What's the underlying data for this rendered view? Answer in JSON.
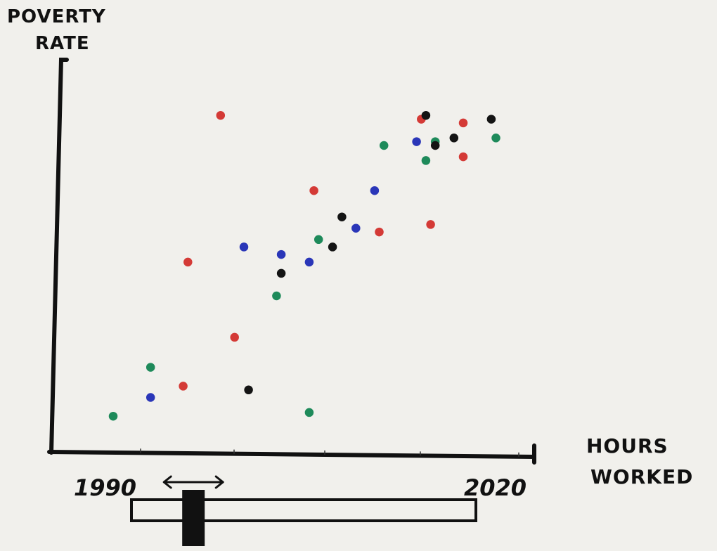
{
  "chart_data": {
    "type": "scatter",
    "ylabel_lines": [
      "POVERTY",
      "RATE"
    ],
    "xlabel_lines": [
      "HOURS",
      "WORKED"
    ],
    "xlim": [
      0,
      100
    ],
    "ylim": [
      0,
      100
    ],
    "grid": false,
    "legend": "none",
    "series": [
      {
        "color": "#1e8a5a",
        "points": [
          [
            11,
            8
          ],
          [
            19,
            21
          ],
          [
            53,
            9
          ],
          [
            46,
            40
          ],
          [
            55,
            55
          ],
          [
            69,
            80
          ],
          [
            78,
            76
          ],
          [
            80,
            81
          ],
          [
            93,
            82
          ]
        ]
      },
      {
        "color": "#d43a36",
        "points": [
          [
            34,
            88
          ],
          [
            27,
            49
          ],
          [
            37,
            29
          ],
          [
            26,
            16
          ],
          [
            54,
            68
          ],
          [
            68,
            57
          ],
          [
            79,
            59
          ],
          [
            77,
            87
          ],
          [
            86,
            86
          ],
          [
            86,
            77
          ]
        ]
      },
      {
        "color": "#2a36b8",
        "points": [
          [
            19,
            13
          ],
          [
            39,
            53
          ],
          [
            47,
            51
          ],
          [
            53,
            49
          ],
          [
            63,
            58
          ],
          [
            67,
            68
          ],
          [
            76,
            81
          ]
        ]
      },
      {
        "color": "#141414",
        "points": [
          [
            40,
            15
          ],
          [
            47,
            46
          ],
          [
            58,
            53
          ],
          [
            60,
            61
          ],
          [
            80,
            80
          ],
          [
            84,
            82
          ],
          [
            78,
            88
          ],
          [
            92,
            87
          ]
        ]
      }
    ]
  },
  "slider": {
    "min_label": "1990",
    "max_label": "2020",
    "handle_position": 0.18
  }
}
